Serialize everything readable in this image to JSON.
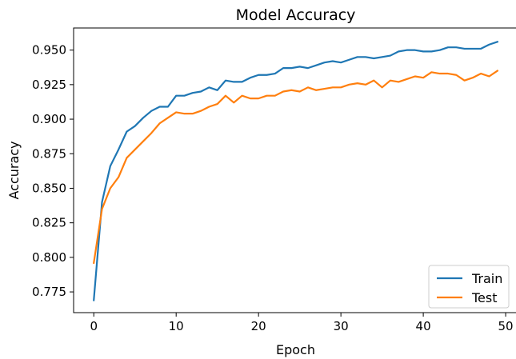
{
  "chart_data": {
    "type": "line",
    "title": "Model Accuracy",
    "xlabel": "Epoch",
    "ylabel": "Accuracy",
    "xlim": [
      -2.45,
      51.45
    ],
    "ylim": [
      0.76,
      0.966
    ],
    "xticks": [
      0,
      10,
      20,
      30,
      40,
      50
    ],
    "yticks": [
      0.775,
      0.8,
      0.825,
      0.85,
      0.875,
      0.9,
      0.925,
      0.95
    ],
    "ytick_labels": [
      "0.775",
      "0.800",
      "0.825",
      "0.850",
      "0.875",
      "0.900",
      "0.925",
      "0.950"
    ],
    "grid": false,
    "legend_position": "lower right",
    "x": [
      0,
      1,
      2,
      3,
      4,
      5,
      6,
      7,
      8,
      9,
      10,
      11,
      12,
      13,
      14,
      15,
      16,
      17,
      18,
      19,
      20,
      21,
      22,
      23,
      24,
      25,
      26,
      27,
      28,
      29,
      30,
      31,
      32,
      33,
      34,
      35,
      36,
      37,
      38,
      39,
      40,
      41,
      42,
      43,
      44,
      45,
      46,
      47,
      48,
      49
    ],
    "series": [
      {
        "name": "Train",
        "color": "#1f77b4",
        "values": [
          0.769,
          0.84,
          0.866,
          0.878,
          0.891,
          0.895,
          0.901,
          0.906,
          0.909,
          0.909,
          0.917,
          0.917,
          0.919,
          0.92,
          0.923,
          0.921,
          0.928,
          0.927,
          0.927,
          0.93,
          0.932,
          0.932,
          0.933,
          0.937,
          0.937,
          0.938,
          0.937,
          0.939,
          0.941,
          0.942,
          0.941,
          0.943,
          0.945,
          0.945,
          0.944,
          0.945,
          0.946,
          0.949,
          0.95,
          0.95,
          0.949,
          0.949,
          0.95,
          0.952,
          0.952,
          0.951,
          0.951,
          0.951,
          0.954,
          0.956
        ]
      },
      {
        "name": "Test",
        "color": "#ff7f0e",
        "values": [
          0.796,
          0.835,
          0.85,
          0.858,
          0.872,
          0.878,
          0.884,
          0.89,
          0.897,
          0.901,
          0.905,
          0.904,
          0.904,
          0.906,
          0.909,
          0.911,
          0.917,
          0.912,
          0.917,
          0.915,
          0.915,
          0.917,
          0.917,
          0.92,
          0.921,
          0.92,
          0.923,
          0.921,
          0.922,
          0.923,
          0.923,
          0.925,
          0.926,
          0.925,
          0.928,
          0.923,
          0.928,
          0.927,
          0.929,
          0.931,
          0.93,
          0.934,
          0.933,
          0.933,
          0.932,
          0.928,
          0.93,
          0.933,
          0.931,
          0.935
        ]
      }
    ]
  }
}
